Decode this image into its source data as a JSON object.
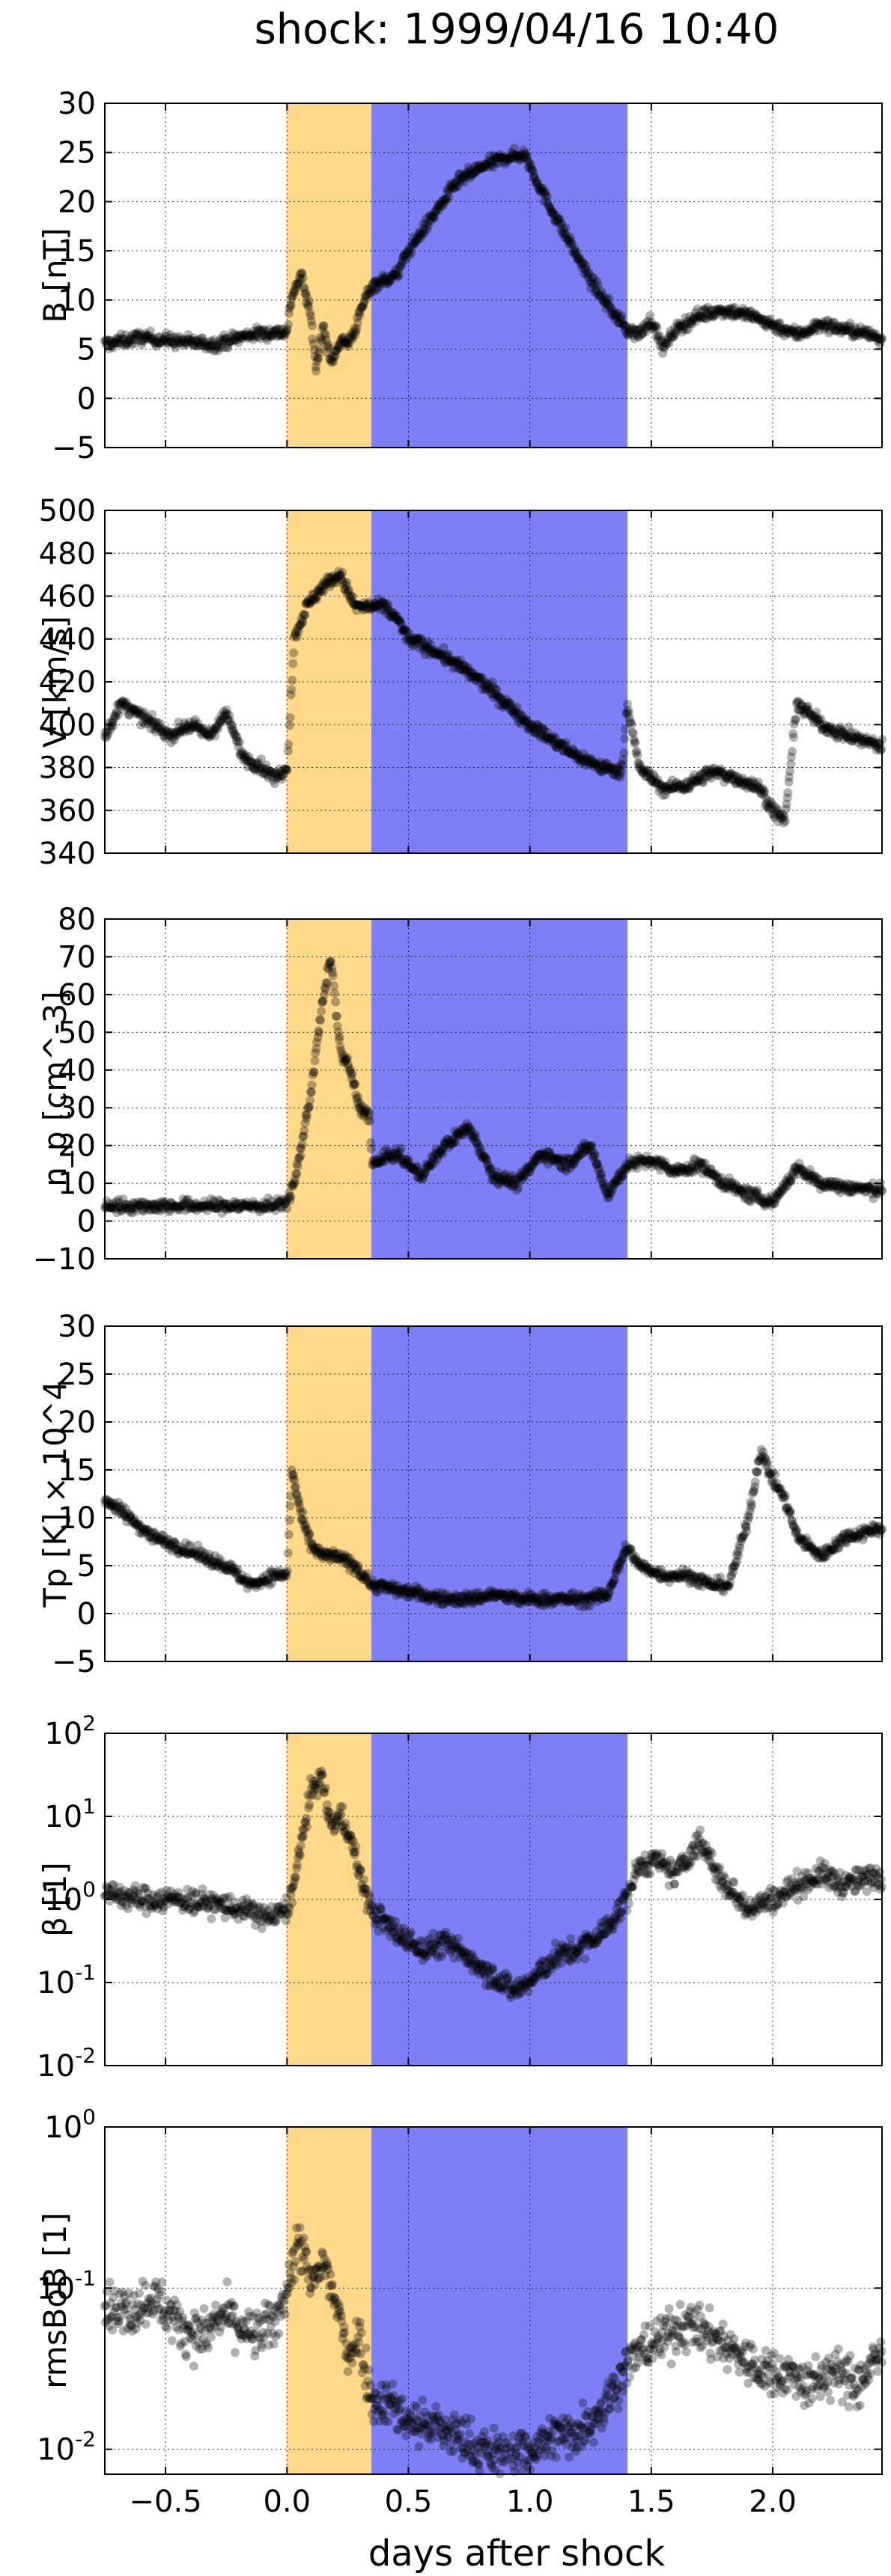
{
  "chart_data": {
    "type": "scatter",
    "title": "shock: 1999/04/16 10:40",
    "xlabel": "days after shock",
    "xlim": [
      -0.75,
      2.45
    ],
    "x_ticks": [
      -0.5,
      0.0,
      0.5,
      1.0,
      1.5,
      2.0
    ],
    "x_tick_labels": [
      "−0.5",
      "0.0",
      "0.5",
      "1.0",
      "1.5",
      "2.0"
    ],
    "grid": true,
    "shaded_regions": [
      {
        "x0": 0.0,
        "x1": 0.35,
        "color": "#ffd88a"
      },
      {
        "x0": 0.35,
        "x1": 1.4,
        "color": "#7f7ff5"
      }
    ],
    "point_color": "#000000",
    "panels": [
      {
        "ylabel": "B [nT]",
        "scale": "linear",
        "ylim": [
          -5,
          30
        ],
        "y_ticks": [
          -5,
          0,
          5,
          10,
          15,
          20,
          25,
          30
        ],
        "y_tick_labels": [
          "−5",
          "0",
          "5",
          "10",
          "15",
          "20",
          "25",
          "30"
        ],
        "series": [
          {
            "x": [
              -0.75,
              -0.6,
              -0.45,
              -0.3,
              -0.15,
              0.0,
              0.02,
              0.06,
              0.1,
              0.12,
              0.15,
              0.18,
              0.22,
              0.25,
              0.28,
              0.32,
              0.35,
              0.4,
              0.45,
              0.5,
              0.6,
              0.7,
              0.8,
              0.9,
              0.98,
              1.05,
              1.15,
              1.25,
              1.35,
              1.4,
              1.45,
              1.5,
              1.55,
              1.6,
              1.7,
              1.8,
              1.9,
              2.0,
              2.1,
              2.2,
              2.3,
              2.4,
              2.45
            ],
            "y": [
              5.5,
              6.2,
              5.8,
              5.5,
              6.5,
              6.8,
              10.5,
              12.5,
              8.0,
              3.0,
              7.5,
              3.5,
              6.0,
              5.5,
              7.0,
              10.0,
              11.5,
              12.0,
              12.5,
              15.0,
              18.5,
              22.0,
              23.5,
              24.5,
              24.8,
              21.0,
              16.5,
              12.0,
              8.5,
              7.0,
              6.5,
              8.0,
              5.0,
              7.0,
              8.5,
              9.0,
              8.5,
              7.5,
              6.5,
              7.5,
              7.0,
              6.5,
              6.0
            ]
          }
        ]
      },
      {
        "ylabel": "V [km/s]",
        "scale": "linear",
        "ylim": [
          340,
          500
        ],
        "y_ticks": [
          340,
          360,
          380,
          400,
          420,
          440,
          460,
          480,
          500
        ],
        "y_tick_labels": [
          "340",
          "360",
          "380",
          "400",
          "420",
          "440",
          "460",
          "480",
          "500"
        ],
        "series": [
          {
            "x": [
              -0.75,
              -0.68,
              -0.62,
              -0.55,
              -0.48,
              -0.4,
              -0.32,
              -0.25,
              -0.18,
              -0.1,
              -0.05,
              0.0,
              0.03,
              0.08,
              0.15,
              0.22,
              0.28,
              0.35,
              0.4,
              0.45,
              0.5,
              0.6,
              0.7,
              0.8,
              0.9,
              1.0,
              1.1,
              1.2,
              1.3,
              1.38,
              1.4,
              1.45,
              1.55,
              1.65,
              1.75,
              1.85,
              1.95,
              2.0,
              2.05,
              2.1,
              2.2,
              2.3,
              2.45
            ],
            "y": [
              395,
              410,
              405,
              400,
              395,
              400,
              395,
              405,
              385,
              380,
              375,
              380,
              440,
              455,
              465,
              470,
              455,
              455,
              455,
              450,
              440,
              435,
              428,
              420,
              410,
              400,
              392,
              385,
              380,
              378,
              410,
              380,
              370,
              372,
              378,
              375,
              370,
              360,
              355,
              410,
              400,
              395,
              390
            ]
          }
        ]
      },
      {
        "ylabel": "n_p [cm^-3]",
        "scale": "linear",
        "ylim": [
          -10,
          80
        ],
        "y_ticks": [
          -10,
          0,
          10,
          20,
          30,
          40,
          50,
          60,
          70,
          80
        ],
        "y_tick_labels": [
          "−10",
          "0",
          "10",
          "20",
          "30",
          "40",
          "50",
          "60",
          "70",
          "80"
        ],
        "series": [
          {
            "x": [
              -0.75,
              -0.5,
              -0.25,
              -0.05,
              0.0,
              0.03,
              0.06,
              0.1,
              0.14,
              0.18,
              0.22,
              0.26,
              0.3,
              0.34,
              0.35,
              0.45,
              0.55,
              0.65,
              0.75,
              0.85,
              0.95,
              1.05,
              1.15,
              1.25,
              1.32,
              1.4,
              1.5,
              1.6,
              1.7,
              1.8,
              1.9,
              2.0,
              2.1,
              2.2,
              2.3,
              2.45
            ],
            "y": [
              4,
              4,
              4,
              4,
              5,
              10,
              20,
              35,
              55,
              70,
              45,
              40,
              30,
              28,
              15,
              18,
              12,
              20,
              25,
              12,
              10,
              18,
              15,
              20,
              7,
              15,
              16,
              13,
              15,
              10,
              7,
              5,
              14,
              10,
              9,
              8
            ]
          }
        ]
      },
      {
        "ylabel": "Tp [K] × 10^4",
        "scale": "linear",
        "ylim": [
          -5,
          30
        ],
        "y_ticks": [
          -5,
          0,
          5,
          10,
          15,
          20,
          25,
          30
        ],
        "y_tick_labels": [
          "−5",
          "0",
          "5",
          "10",
          "15",
          "20",
          "25",
          "30"
        ],
        "series": [
          {
            "x": [
              -0.75,
              -0.65,
              -0.55,
              -0.45,
              -0.35,
              -0.25,
              -0.15,
              -0.05,
              0.0,
              0.02,
              0.06,
              0.1,
              0.15,
              0.2,
              0.28,
              0.35,
              0.45,
              0.55,
              0.65,
              0.75,
              0.85,
              0.95,
              1.05,
              1.15,
              1.25,
              1.32,
              1.4,
              1.45,
              1.55,
              1.65,
              1.75,
              1.82,
              1.9,
              1.95,
              2.0,
              2.05,
              2.1,
              2.2,
              2.3,
              2.45
            ],
            "y": [
              12,
              10,
              8,
              7,
              6,
              5,
              3,
              4,
              4,
              15,
              10,
              7,
              6,
              6,
              5,
              3,
              2.5,
              2,
              1.5,
              1.5,
              2,
              1.5,
              1.5,
              1.5,
              1.5,
              2,
              7,
              5,
              4,
              4,
              3,
              3,
              10,
              17,
              14,
              12,
              8,
              6,
              8,
              9
            ]
          }
        ]
      },
      {
        "ylabel": "β [1]",
        "scale": "log",
        "ylim": [
          0.01,
          100
        ],
        "y_ticks": [
          0.01,
          0.1,
          1,
          10,
          100
        ],
        "y_tick_labels": [
          [
            "10",
            "-2"
          ],
          [
            "10",
            "-1"
          ],
          [
            "10",
            "0"
          ],
          [
            "10",
            "1"
          ],
          [
            "10",
            "2"
          ]
        ],
        "series": [
          {
            "x": [
              -0.75,
              -0.6,
              -0.45,
              -0.3,
              -0.15,
              -0.05,
              0.0,
              0.03,
              0.06,
              0.1,
              0.14,
              0.18,
              0.22,
              0.26,
              0.3,
              0.35,
              0.45,
              0.55,
              0.65,
              0.75,
              0.85,
              0.93,
              1.0,
              1.1,
              1.2,
              1.3,
              1.38,
              1.45,
              1.5,
              1.6,
              1.7,
              1.8,
              1.9,
              2.0,
              2.1,
              2.2,
              2.3,
              2.45
            ],
            "y": [
              1.2,
              1.0,
              1.0,
              0.9,
              0.7,
              0.6,
              0.8,
              1.5,
              5,
              20,
              30,
              8,
              10,
              6,
              2,
              0.7,
              0.4,
              0.25,
              0.3,
              0.2,
              0.12,
              0.08,
              0.1,
              0.2,
              0.25,
              0.4,
              0.8,
              2.5,
              3,
              2,
              5,
              1.5,
              0.8,
              1.0,
              1.5,
              2,
              1.5,
              2
            ]
          }
        ]
      },
      {
        "ylabel": "rmsBoB [1]",
        "scale": "log",
        "ylim": [
          0.007,
          1
        ],
        "y_ticks": [
          0.01,
          0.1,
          1
        ],
        "y_tick_labels": [
          [
            "10",
            "-2"
          ],
          [
            "10",
            "-1"
          ],
          [
            "10",
            "0"
          ]
        ],
        "series": [
          {
            "x": [
              -0.75,
              -0.65,
              -0.55,
              -0.45,
              -0.35,
              -0.25,
              -0.15,
              -0.05,
              0.0,
              0.05,
              0.1,
              0.15,
              0.2,
              0.25,
              0.3,
              0.35,
              0.42,
              0.5,
              0.6,
              0.7,
              0.8,
              0.9,
              1.0,
              1.1,
              1.2,
              1.3,
              1.38,
              1.45,
              1.55,
              1.65,
              1.75,
              1.85,
              1.95,
              2.05,
              2.15,
              2.25,
              2.35,
              2.45
            ],
            "y": [
              0.08,
              0.07,
              0.09,
              0.06,
              0.05,
              0.07,
              0.05,
              0.06,
              0.1,
              0.2,
              0.1,
              0.15,
              0.08,
              0.04,
              0.05,
              0.02,
              0.02,
              0.015,
              0.014,
              0.012,
              0.01,
              0.009,
              0.01,
              0.012,
              0.013,
              0.018,
              0.03,
              0.04,
              0.05,
              0.06,
              0.05,
              0.04,
              0.03,
              0.03,
              0.025,
              0.03,
              0.025,
              0.04
            ]
          }
        ]
      }
    ]
  }
}
